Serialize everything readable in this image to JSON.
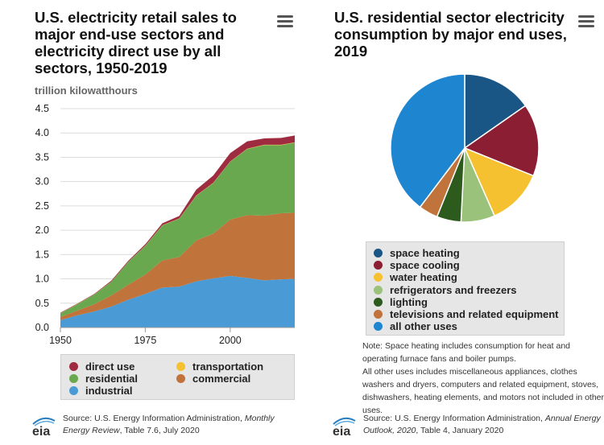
{
  "left_chart": {
    "title": "U.S. electricity retail sales to major end-use sectors and electricity direct use by all sectors, 1950-2019",
    "unit_label": "trillion kilowatthours",
    "menu_icon": "hamburger-menu-icon",
    "source_prefix": "Source: U.S. Energy Information Administration, ",
    "source_title": "Monthly Energy Review",
    "source_suffix": ", Table 7.6, July 2020",
    "logo_text": "eia"
  },
  "right_chart": {
    "title": "U.S. residential sector electricity consumption by major end uses, 2019",
    "menu_icon": "hamburger-menu-icon",
    "note_lines": [
      "Note: Space heating includes consumption for heat and operating furnace fans and boiler pumps.",
      "All other uses includes miscellaneous appliances, clothes washers and dryers, computers and related equipment, stoves, dishwashers, heating elements, and motors not included in other uses."
    ],
    "source_prefix": "Source: U.S. Energy Information Administration, ",
    "source_title": "Annual Energy Outlook, 2020",
    "source_suffix": ", Table 4, January 2020",
    "logo_text": "eia"
  },
  "chart_data": [
    {
      "type": "area",
      "stacked": true,
      "title": "U.S. electricity retail sales to major end-use sectors and electricity direct use by all sectors, 1950-2019",
      "ylabel": "trillion kilowatthours",
      "xlabel": "",
      "xlim": [
        1950,
        2019
      ],
      "ylim": [
        0,
        4.5
      ],
      "x_ticks": [
        1950,
        1975,
        2000
      ],
      "y_ticks": [
        0.0,
        0.5,
        1.0,
        1.5,
        2.0,
        2.5,
        3.0,
        3.5,
        4.0,
        4.5
      ],
      "grid": true,
      "legend_position": "bottom",
      "x": [
        1950,
        1955,
        1960,
        1965,
        1970,
        1975,
        1980,
        1985,
        1990,
        1995,
        2000,
        2005,
        2010,
        2015,
        2019
      ],
      "series": [
        {
          "name": "industrial",
          "color": "#4a9ad6",
          "values": [
            0.15,
            0.25,
            0.33,
            0.43,
            0.57,
            0.69,
            0.82,
            0.84,
            0.95,
            1.01,
            1.06,
            1.02,
            0.97,
            0.99,
            1.0
          ]
        },
        {
          "name": "commercial",
          "color": "#c1733c",
          "values": [
            0.07,
            0.1,
            0.15,
            0.23,
            0.31,
            0.4,
            0.56,
            0.61,
            0.84,
            0.92,
            1.16,
            1.29,
            1.33,
            1.36,
            1.36
          ]
        },
        {
          "name": "residential",
          "color": "#6aa84f",
          "values": [
            0.07,
            0.13,
            0.2,
            0.28,
            0.47,
            0.59,
            0.72,
            0.79,
            0.92,
            1.04,
            1.19,
            1.36,
            1.45,
            1.4,
            1.44
          ]
        },
        {
          "name": "transportation",
          "color": "#f6c131",
          "values": [
            0.003,
            0.003,
            0.003,
            0.003,
            0.003,
            0.003,
            0.003,
            0.004,
            0.005,
            0.005,
            0.005,
            0.007,
            0.008,
            0.008,
            0.007
          ]
        },
        {
          "name": "direct use",
          "color": "#9e2b3f",
          "values": [
            0.01,
            0.01,
            0.01,
            0.02,
            0.02,
            0.03,
            0.04,
            0.05,
            0.12,
            0.15,
            0.17,
            0.15,
            0.13,
            0.14,
            0.14
          ]
        }
      ]
    },
    {
      "type": "pie",
      "title": "U.S. residential sector electricity consumption by major end uses, 2019",
      "legend_position": "bottom",
      "slices": [
        {
          "label": "space heating",
          "value": 15.3,
          "color": "#1a5685"
        },
        {
          "label": "space cooling",
          "value": 15.8,
          "color": "#8b1e33"
        },
        {
          "label": "water heating",
          "value": 12.3,
          "color": "#f6c131"
        },
        {
          "label": "refrigerators and freezers",
          "value": 7.4,
          "color": "#9ac27a"
        },
        {
          "label": "lighting",
          "value": 5.3,
          "color": "#2d5a1d"
        },
        {
          "label": "televisions and related equipment",
          "value": 4.2,
          "color": "#c1733c"
        },
        {
          "label": "all other uses",
          "value": 39.7,
          "color": "#1e86d0"
        }
      ]
    }
  ]
}
